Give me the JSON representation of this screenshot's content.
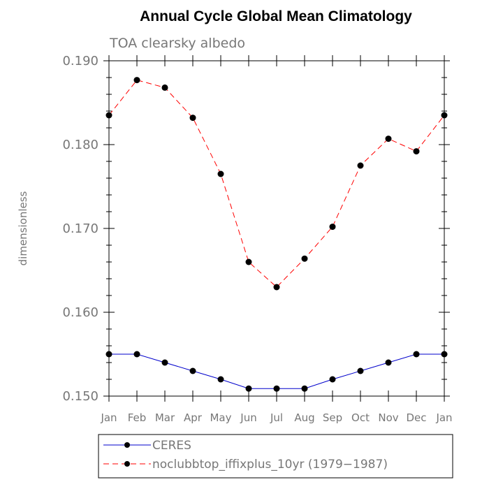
{
  "chart_data": {
    "type": "line",
    "title": "Annual Cycle Global Mean Climatology",
    "subtitle": "TOA clearsky albedo",
    "ylabel": "dimensionless",
    "xlabel": "",
    "categories": [
      "Jan",
      "Feb",
      "Mar",
      "Apr",
      "May",
      "Jun",
      "Jul",
      "Aug",
      "Sep",
      "Oct",
      "Nov",
      "Dec",
      "Jan"
    ],
    "ylim": [
      0.15,
      0.19
    ],
    "yticks": [
      0.15,
      0.16,
      0.17,
      0.18,
      0.19
    ],
    "ytick_labels": [
      "0.150",
      "0.160",
      "0.170",
      "0.180",
      "0.190"
    ],
    "series": [
      {
        "name": "CERES",
        "color": "#0000cc",
        "dash": "solid",
        "values": [
          0.155,
          0.155,
          0.154,
          0.153,
          0.152,
          0.1509,
          0.1509,
          0.1509,
          0.152,
          0.153,
          0.154,
          0.155,
          0.155
        ]
      },
      {
        "name": "noclubbtop_iffixplus_10yr (1979-1987)",
        "color": "#ff0000",
        "dash": "dashed",
        "values": [
          0.1835,
          0.1877,
          0.1868,
          0.1832,
          0.1765,
          0.166,
          0.163,
          0.1664,
          0.1702,
          0.1775,
          0.1807,
          0.1792,
          0.1835
        ]
      }
    ],
    "legend": {
      "position": "bottom",
      "labels": [
        "CERES",
        "noclubbtop_iffixplus_10yr (1979−1987)"
      ]
    }
  }
}
